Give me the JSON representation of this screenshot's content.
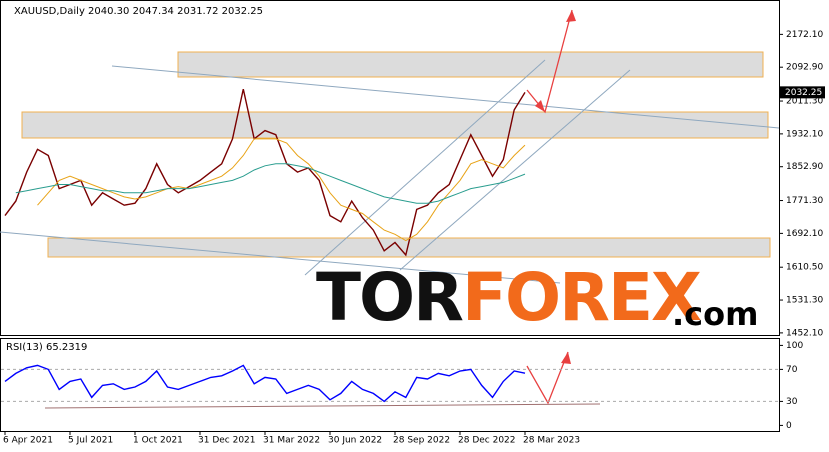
{
  "chart_data": [
    {
      "type": "line",
      "title": "XAUUSD,Daily  2040.30 2047.34 2031.72 2032.25",
      "categories": [
        "6 Apr 2021",
        null,
        null,
        null,
        null,
        null,
        "5 Jul 2021",
        null,
        null,
        null,
        null,
        null,
        "1 Oct 2021",
        null,
        null,
        null,
        null,
        null,
        "31 Dec 2021",
        null,
        null,
        null,
        null,
        null,
        "31 Mar 2022",
        null,
        null,
        null,
        null,
        null,
        "30 Jun 2022",
        null,
        null,
        null,
        null,
        null,
        "28 Sep 2022",
        null,
        null,
        null,
        null,
        null,
        "28 Dec 2022",
        null,
        null,
        null,
        null,
        null,
        "28 Mar 2023"
      ],
      "series": [
        {
          "color": "#7a0000",
          "values": [
            1735,
            1770,
            1840,
            1895,
            1880,
            1800,
            1810,
            1820,
            1760,
            1790,
            1775,
            1760,
            1765,
            1800,
            1860,
            1810,
            1790,
            1805,
            1820,
            1840,
            1860,
            1920,
            2040,
            1920,
            1940,
            1930,
            1860,
            1840,
            1850,
            1820,
            1735,
            1720,
            1770,
            1730,
            1700,
            1650,
            1670,
            1640,
            1750,
            1760,
            1790,
            1810,
            1870,
            1930,
            1880,
            1830,
            1870,
            1990,
            2032.25
          ]
        },
        {
          "color": "#e8a317",
          "values": [
            null,
            null,
            null,
            1760,
            1790,
            1820,
            1830,
            1820,
            1810,
            1800,
            1790,
            1780,
            1775,
            1780,
            1790,
            1800,
            1805,
            1800,
            1810,
            1820,
            1830,
            1850,
            1880,
            1920,
            1920,
            1920,
            1910,
            1880,
            1860,
            1830,
            1790,
            1760,
            1750,
            1740,
            1720,
            1700,
            1690,
            1675,
            1690,
            1720,
            1760,
            1790,
            1820,
            1860,
            1870,
            1860,
            1850,
            1880,
            1905
          ]
        },
        {
          "color": "#2a9d8f",
          "values": [
            null,
            1790,
            1795,
            1800,
            1805,
            1810,
            1810,
            1805,
            1800,
            1795,
            1795,
            1790,
            1790,
            1790,
            1795,
            1800,
            1800,
            1800,
            1805,
            1810,
            1815,
            1820,
            1830,
            1845,
            1855,
            1860,
            1860,
            1855,
            1850,
            1840,
            1830,
            1820,
            1810,
            1800,
            1790,
            1780,
            1775,
            1770,
            1765,
            1765,
            1770,
            1780,
            1790,
            1800,
            1805,
            1810,
            1815,
            1825,
            1835
          ]
        }
      ],
      "ylim": [
        1447,
        2255
      ],
      "yticks": [
        {
          "value": 2172.1,
          "label": "2172.10"
        },
        {
          "value": 2092.9,
          "label": "2092.90"
        },
        {
          "value": 2011.3,
          "label": "2011.30"
        },
        {
          "value": 1932.1,
          "label": "1932.10"
        },
        {
          "value": 1852.9,
          "label": "1852.90"
        },
        {
          "value": 1771.3,
          "label": "1771.30"
        },
        {
          "value": 1692.1,
          "label": "1692.10"
        },
        {
          "value": 1610.5,
          "label": "1610.50"
        },
        {
          "value": 1531.3,
          "label": "1531.30"
        },
        {
          "value": 1452.1,
          "label": "1452.10"
        }
      ]
    },
    {
      "type": "line",
      "title": "RSI(13) 65.2319",
      "series": [
        {
          "color": "#0000ff",
          "values": [
            55,
            65,
            72,
            75,
            70,
            45,
            55,
            58,
            35,
            50,
            52,
            45,
            48,
            55,
            68,
            48,
            45,
            50,
            55,
            60,
            62,
            68,
            75,
            52,
            60,
            58,
            40,
            45,
            50,
            45,
            32,
            40,
            55,
            45,
            40,
            30,
            42,
            35,
            60,
            58,
            65,
            62,
            68,
            70,
            50,
            35,
            55,
            68,
            65.2319
          ]
        }
      ],
      "ylim": [
        -7,
        108
      ],
      "yticks": [
        0,
        30,
        70,
        100
      ]
    }
  ],
  "watermark": {
    "left": "TOR",
    "middle": "FOREX",
    "right": ".com"
  }
}
